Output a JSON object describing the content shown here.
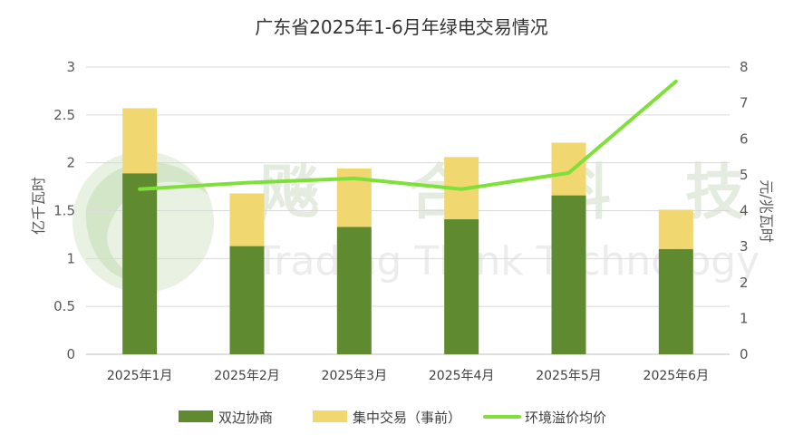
{
  "chart_data": {
    "type": "bar",
    "title": "广东省2025年1-6月年绿电交易情况",
    "categories": [
      "2025年1月",
      "2025年2月",
      "2025年3月",
      "2025年4月",
      "2025年5月",
      "2025年6月"
    ],
    "series": [
      {
        "name": "双边协商",
        "type": "bar",
        "stack": "total",
        "axis": "left",
        "color": "#5f8a30",
        "values": [
          1.89,
          1.13,
          1.33,
          1.41,
          1.66,
          1.1
        ]
      },
      {
        "name": "集中交易（事前）",
        "type": "bar",
        "stack": "total",
        "axis": "left",
        "color": "#f0d770",
        "values": [
          0.68,
          0.55,
          0.61,
          0.65,
          0.55,
          0.41
        ]
      },
      {
        "name": "环境溢价均价",
        "type": "line",
        "axis": "right",
        "color": "#7fe03a",
        "values": [
          4.6,
          4.78,
          4.9,
          4.6,
          5.05,
          7.6
        ]
      }
    ],
    "ylabel": "亿千瓦时",
    "ylim": [
      0,
      3
    ],
    "yticks": [
      0,
      0.5,
      1,
      1.5,
      2,
      2.5,
      3
    ],
    "y2label": "元/兆瓦时",
    "y2lim": [
      0,
      8
    ],
    "y2ticks": [
      0,
      1,
      2,
      3,
      4,
      5,
      6,
      7,
      8
    ],
    "grid": true,
    "legend": "bottom"
  },
  "watermark": {
    "cn": [
      "飚",
      "合",
      "科",
      "技"
    ],
    "en": "Trading Think Technology"
  }
}
